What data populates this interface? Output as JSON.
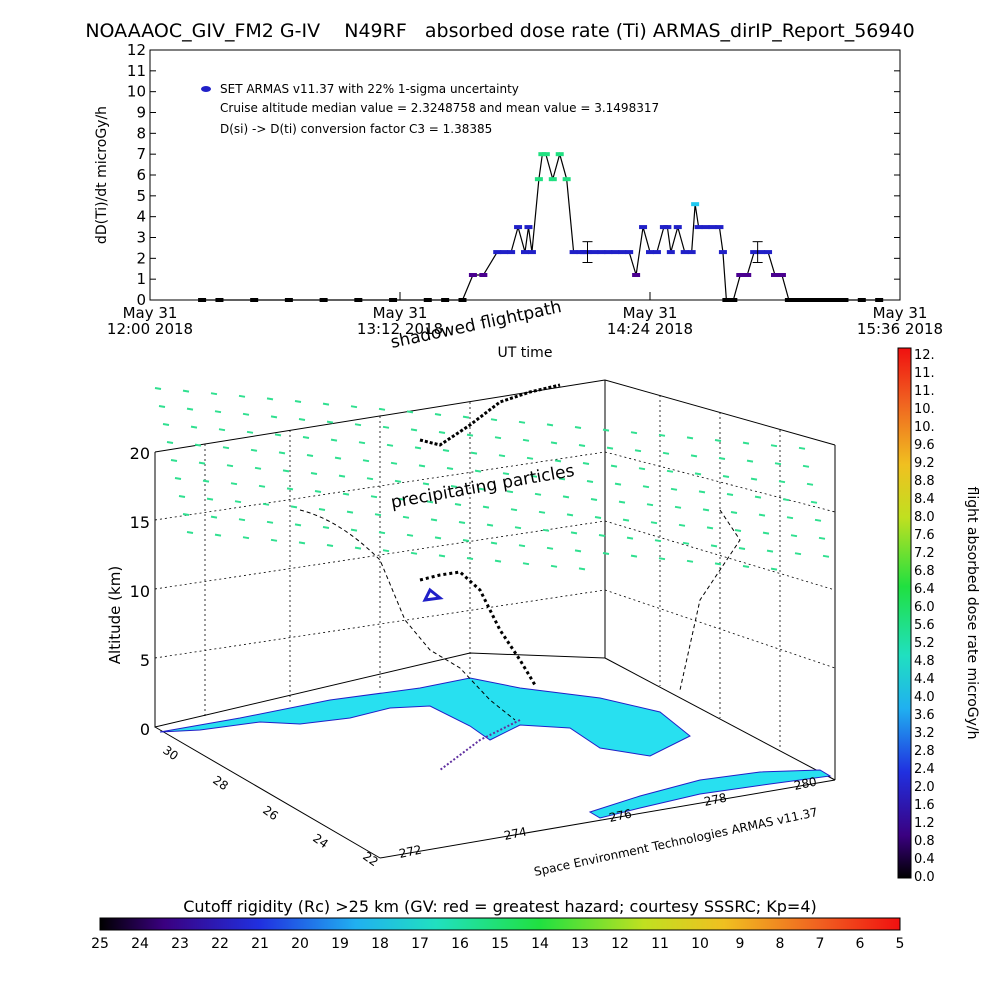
{
  "title": "NOAAAOC_GIV_FM2 G-IV    N49RF   absorbed dose rate (Ti) ARMAS_dirIP_Report_56940",
  "top_chart": {
    "ylabel": "dD(Ti)/dt microGy/h",
    "xlabel": "UT time",
    "legend_series": "SET ARMAS v11.37 with 22% 1-sigma uncertainty",
    "note_1": "Cruise altitude median value = 2.3248758 and mean value = 3.1498317",
    "note_2": "D(si) -> D(ti) conversion factor C3 = 1.38385",
    "x_ticks": [
      {
        "top": "May 31",
        "bottom": "12:00 2018"
      },
      {
        "top": "May 31",
        "bottom": "13:12 2018"
      },
      {
        "top": "May 31",
        "bottom": "14:24 2018"
      },
      {
        "top": "May 31",
        "bottom": "15:36 2018"
      }
    ]
  },
  "chart_data": [
    {
      "type": "line",
      "title": "NOAAAOC_GIV_FM2 G-IV    N49RF   absorbed dose rate (Ti) ARMAS_dirIP_Report_56940",
      "xlabel": "UT time",
      "ylabel": "dD(Ti)/dt microGy/h",
      "x_unit": "minutes after May 31 12:00 2018 UT",
      "xlim": [
        0,
        216
      ],
      "ylim": [
        0,
        12
      ],
      "y_ticks": [
        0,
        1,
        2,
        3,
        4,
        5,
        6,
        7,
        8,
        9,
        10,
        11,
        12
      ],
      "grid": false,
      "legend_position": "top-left",
      "series": [
        {
          "name": "SET ARMAS v11.37 with 22% 1-sigma uncertainty",
          "x": [
            15,
            20,
            30,
            40,
            50,
            60,
            70,
            80,
            85,
            90,
            93,
            96,
            100,
            102,
            104,
            106,
            108,
            109,
            110,
            112,
            113,
            114,
            116,
            118,
            120,
            122,
            124,
            125,
            126,
            128,
            130,
            132,
            134,
            136,
            138,
            140,
            142,
            144,
            146,
            148,
            149,
            150,
            152,
            154,
            156,
            157,
            158,
            160,
            162,
            164,
            165,
            166,
            168,
            170,
            172,
            174,
            176,
            178,
            180,
            182,
            184,
            186,
            188,
            190,
            192,
            194,
            196,
            198,
            200,
            205,
            210
          ],
          "y": [
            0,
            0,
            0,
            0,
            0,
            0,
            0,
            0,
            0,
            0,
            1.2,
            1.2,
            2.3,
            2.3,
            2.3,
            3.5,
            2.3,
            3.5,
            2.3,
            5.8,
            7.0,
            7.0,
            5.8,
            7.0,
            5.8,
            2.3,
            2.3,
            2.3,
            2.3,
            2.3,
            2.3,
            2.3,
            2.3,
            2.3,
            2.3,
            1.2,
            3.5,
            2.3,
            2.3,
            3.5,
            3.5,
            2.3,
            3.5,
            2.3,
            2.3,
            4.6,
            3.5,
            3.5,
            3.5,
            3.5,
            2.3,
            0,
            0,
            1.2,
            1.2,
            2.3,
            2.3,
            2.3,
            1.2,
            1.2,
            0,
            0,
            0,
            0,
            0,
            0,
            0,
            0,
            0,
            0,
            0
          ]
        }
      ],
      "error_bars": [
        {
          "x": 126,
          "y": 2.3,
          "low": 1.8,
          "high": 2.8
        },
        {
          "x": 175,
          "y": 2.3,
          "low": 1.8,
          "high": 2.8
        }
      ]
    },
    {
      "type": "scatter",
      "subtype": "3d-trajectory",
      "zlabel": "Altitude (km)",
      "z_ticks": [
        0,
        5,
        10,
        15,
        20
      ],
      "x_ticks": [
        272,
        274,
        276,
        278,
        280
      ],
      "y_ticks": [
        30,
        28,
        26,
        24,
        22
      ],
      "annotations": [
        "shadowed flightpath",
        "precipitating particles"
      ],
      "credit": "Space Environment Technologies ARMAS v11.37"
    }
  ],
  "colorbar_right": {
    "label": "flight absorbed dose rate microGy/h",
    "ticks": [
      "12.",
      "11.",
      "11.",
      "10.",
      "10.",
      "9.6",
      "9.2",
      "8.8",
      "8.4",
      "8.0",
      "7.6",
      "7.2",
      "6.8",
      "6.4",
      "6.0",
      "5.6",
      "5.2",
      "4.8",
      "4.4",
      "4.0",
      "3.6",
      "3.2",
      "2.8",
      "2.4",
      "2.0",
      "1.6",
      "1.2",
      "0.8",
      "0.4",
      "0.0"
    ]
  },
  "colorbar_bottom": {
    "label": "Cutoff rigidity (Rc) >25 km (GV: red = greatest hazard; courtesy SSSRC; Kp=4)",
    "ticks": [
      "25",
      "24",
      "23",
      "22",
      "21",
      "20",
      "19",
      "18",
      "17",
      "16",
      "15",
      "14",
      "13",
      "12",
      "11",
      "10",
      "9",
      "8",
      "7",
      "6",
      "5"
    ]
  },
  "colors": {
    "line": "#000000",
    "marker_blue": "#2020c8",
    "marker_green": "#20e080",
    "marker_cyan": "#20c8f0",
    "land": "#28e0f0",
    "particles": "#30e090"
  }
}
